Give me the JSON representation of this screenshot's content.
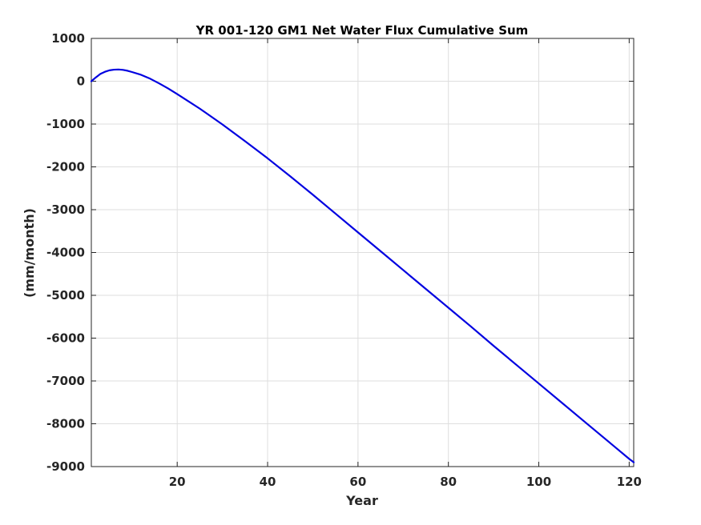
{
  "chart_data": {
    "type": "line",
    "title": "YR 001-120 GM1 Net Water Flux Cumulative Sum",
    "xlabel": "Year",
    "ylabel": "(mm/month)",
    "xlim": [
      1,
      121
    ],
    "ylim": [
      -9000,
      1000
    ],
    "xticks": [
      20,
      40,
      60,
      80,
      100,
      120
    ],
    "yticks": [
      1000,
      0,
      -1000,
      -2000,
      -3000,
      -4000,
      -5000,
      -6000,
      -7000,
      -8000,
      -9000
    ],
    "grid": true,
    "series": [
      {
        "color": "#0000e0",
        "x": [
          1,
          2,
          3,
          4,
          5,
          6,
          7,
          8,
          9,
          10,
          12,
          14,
          16,
          18,
          20,
          25,
          30,
          35,
          40,
          45,
          50,
          55,
          60,
          65,
          70,
          75,
          80,
          85,
          90,
          95,
          100,
          105,
          110,
          115,
          120,
          121
        ],
        "y": [
          0,
          90,
          170,
          220,
          255,
          270,
          275,
          265,
          245,
          215,
          150,
          60,
          -50,
          -170,
          -300,
          -640,
          -1010,
          -1400,
          -1800,
          -2220,
          -2650,
          -3090,
          -3530,
          -3970,
          -4410,
          -4850,
          -5290,
          -5730,
          -6180,
          -6620,
          -7060,
          -7500,
          -7940,
          -8380,
          -8820,
          -8900
        ]
      }
    ]
  },
  "colors": {
    "line": "#0000e0",
    "grid": "#dedede",
    "axis": "#262626"
  }
}
